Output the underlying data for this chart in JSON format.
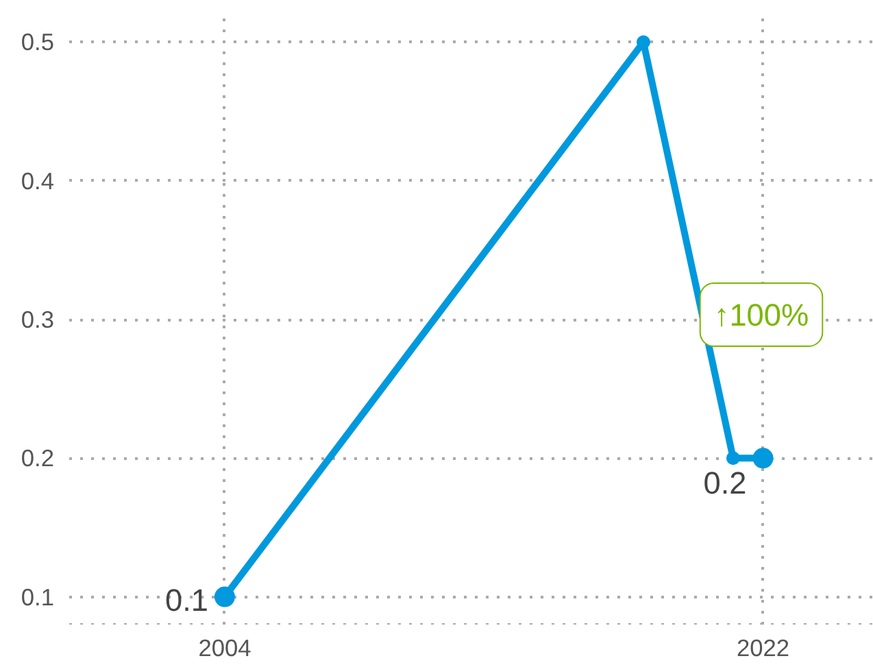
{
  "chart_data": {
    "type": "line",
    "x": [
      2004,
      2018,
      2021,
      2022
    ],
    "series": [
      {
        "color": "#0099dd",
        "values": [
          0.1,
          0.5,
          0.2,
          0.2
        ],
        "value_labels": [
          "0.1",
          null,
          null,
          "0.2"
        ]
      }
    ],
    "xlim": [
      1998.8,
      2025.7
    ],
    "xticks": [
      2004,
      2022
    ],
    "ylim": [
      0.08,
      0.52
    ],
    "yticks": [
      0.1,
      0.2,
      0.3,
      0.4,
      0.5
    ],
    "grid": true,
    "marker": "circle",
    "line_style": "solid",
    "annotations": [
      "↑100%"
    ]
  }
}
